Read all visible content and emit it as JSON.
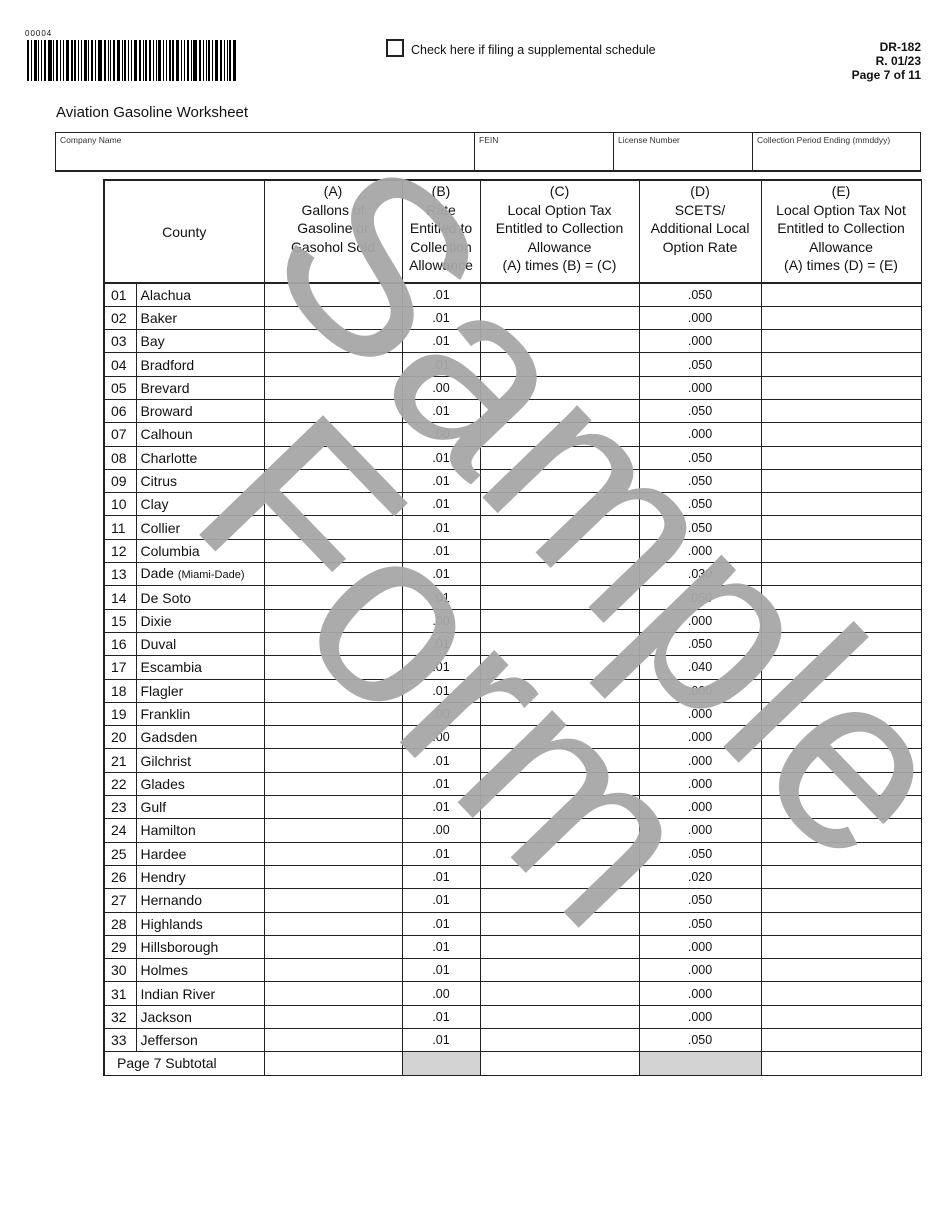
{
  "header": {
    "form_number_small": "00004",
    "supplemental_checkbox_label": "Check here if filing a supplemental schedule",
    "form_id": "DR-182",
    "revision": "R. 01/23",
    "page": "Page 7 of 11"
  },
  "title": "Aviation Gasoline Worksheet",
  "info_fields": {
    "company_name": "Company Name",
    "fein": "FEIN",
    "license_number": "License Number",
    "collection_period": "Collection Period Ending (mmddyy)"
  },
  "columns": {
    "county": "County",
    "a": [
      "(A)",
      "Gallons of",
      "Gasoline or",
      "Gasohol Sold"
    ],
    "b": [
      "(B)",
      "Rate",
      "Entitled to",
      "Collection",
      "Allowance"
    ],
    "c": [
      "(C)",
      "Local Option Tax",
      "Entitled to Collection",
      "Allowance",
      "(A) times (B) = (C)"
    ],
    "d": [
      "(D)",
      "SCETS/",
      "Additional Local",
      "Option Rate"
    ],
    "e": [
      "(E)",
      "Local Option Tax Not",
      "Entitled to Collection",
      "Allowance",
      "(A) times (D) = (E)"
    ]
  },
  "rows": [
    {
      "no": "01",
      "county": "Alachua",
      "b": ".01",
      "d": ".050"
    },
    {
      "no": "02",
      "county": "Baker",
      "b": ".01",
      "d": ".000"
    },
    {
      "no": "03",
      "county": "Bay",
      "b": ".01",
      "d": ".000"
    },
    {
      "no": "04",
      "county": "Bradford",
      "b": ".01",
      "d": ".050"
    },
    {
      "no": "05",
      "county": "Brevard",
      "b": ".00",
      "d": ".000"
    },
    {
      "no": "06",
      "county": "Broward",
      "b": ".01",
      "d": ".050"
    },
    {
      "no": "07",
      "county": "Calhoun",
      "b": ".00",
      "d": ".000"
    },
    {
      "no": "08",
      "county": "Charlotte",
      "b": ".01",
      "d": ".050"
    },
    {
      "no": "09",
      "county": "Citrus",
      "b": ".01",
      "d": ".050"
    },
    {
      "no": "10",
      "county": "Clay",
      "b": ".01",
      "d": ".050"
    },
    {
      "no": "11",
      "county": "Collier",
      "b": ".01",
      "d": ".050"
    },
    {
      "no": "12",
      "county": "Columbia",
      "b": ".01",
      "d": ".000"
    },
    {
      "no": "13",
      "county": "Dade",
      "note": "(Miami-Dade)",
      "b": ".01",
      "d": ".030"
    },
    {
      "no": "14",
      "county": "De Soto",
      "b": ".01",
      "d": ".050"
    },
    {
      "no": "15",
      "county": "Dixie",
      "b": ".00",
      "d": ".000"
    },
    {
      "no": "16",
      "county": "Duval",
      "b": ".01",
      "d": ".050"
    },
    {
      "no": "17",
      "county": "Escambia",
      "b": ".01",
      "d": ".040"
    },
    {
      "no": "18",
      "county": "Flagler",
      "b": ".01",
      "d": ".000"
    },
    {
      "no": "19",
      "county": "Franklin",
      "b": ".00",
      "d": ".000"
    },
    {
      "no": "20",
      "county": "Gadsden",
      "b": ".00",
      "d": ".000"
    },
    {
      "no": "21",
      "county": "Gilchrist",
      "b": ".01",
      "d": ".000"
    },
    {
      "no": "22",
      "county": "Glades",
      "b": ".01",
      "d": ".000"
    },
    {
      "no": "23",
      "county": "Gulf",
      "b": ".01",
      "d": ".000"
    },
    {
      "no": "24",
      "county": "Hamilton",
      "b": ".00",
      "d": ".000"
    },
    {
      "no": "25",
      "county": "Hardee",
      "b": ".01",
      "d": ".050"
    },
    {
      "no": "26",
      "county": "Hendry",
      "b": ".01",
      "d": ".020"
    },
    {
      "no": "27",
      "county": "Hernando",
      "b": ".01",
      "d": ".050"
    },
    {
      "no": "28",
      "county": "Highlands",
      "b": ".01",
      "d": ".050"
    },
    {
      "no": "29",
      "county": "Hillsborough",
      "b": ".01",
      "d": ".000"
    },
    {
      "no": "30",
      "county": "Holmes",
      "b": ".01",
      "d": ".000"
    },
    {
      "no": "31",
      "county": "Indian River",
      "b": ".00",
      "d": ".000"
    },
    {
      "no": "32",
      "county": "Jackson",
      "b": ".01",
      "d": ".000"
    },
    {
      "no": "33",
      "county": "Jefferson",
      "b": ".01",
      "d": ".050"
    }
  ],
  "subtotal_label": "Page 7 Subtotal",
  "watermark": {
    "line1": "Sample",
    "line2": "Form",
    "color": "#a6a6a6"
  }
}
